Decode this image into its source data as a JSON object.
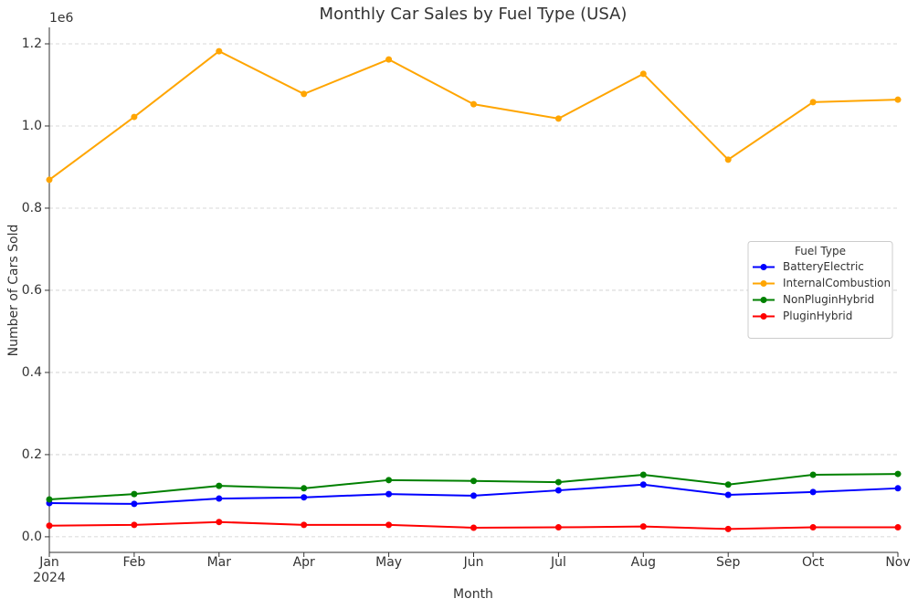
{
  "chart_data": {
    "type": "line",
    "title": "Monthly Car Sales by Fuel Type (USA)",
    "x_label": "Month",
    "y_label": "Number of Cars Sold",
    "y_offset_label": "1e6",
    "year_label": "2024",
    "categories": [
      "Jan",
      "Feb",
      "Mar",
      "Apr",
      "May",
      "Jun",
      "Jul",
      "Aug",
      "Sep",
      "Oct",
      "Nov"
    ],
    "series": [
      {
        "name": "BatteryElectric",
        "color": "#0000ff",
        "values": [
          0.082,
          0.08,
          0.093,
          0.096,
          0.104,
          0.1,
          0.113,
          0.127,
          0.102,
          0.109,
          0.118
        ]
      },
      {
        "name": "InternalCombustion",
        "color": "#ffa500",
        "values": [
          0.869,
          1.022,
          1.182,
          1.078,
          1.162,
          1.053,
          1.018,
          1.127,
          0.918,
          1.058,
          1.064
        ]
      },
      {
        "name": "NonPluginHybrid",
        "color": "#008000",
        "values": [
          0.091,
          0.104,
          0.124,
          0.118,
          0.138,
          0.136,
          0.133,
          0.151,
          0.127,
          0.151,
          0.153
        ]
      },
      {
        "name": "PluginHybrid",
        "color": "#ff0000",
        "values": [
          0.027,
          0.029,
          0.036,
          0.029,
          0.029,
          0.022,
          0.023,
          0.025,
          0.019,
          0.023,
          0.023
        ]
      }
    ],
    "ylim": [
      -0.038,
      1.24
    ],
    "yticks": [
      {
        "value": 0,
        "label": "0.0"
      },
      0.2,
      0.4,
      0.6,
      0.8,
      {
        "value": 1,
        "label": "1.0"
      },
      1.2
    ],
    "grid": true,
    "legend_title": "Fuel Type",
    "legend_position": "center right"
  }
}
